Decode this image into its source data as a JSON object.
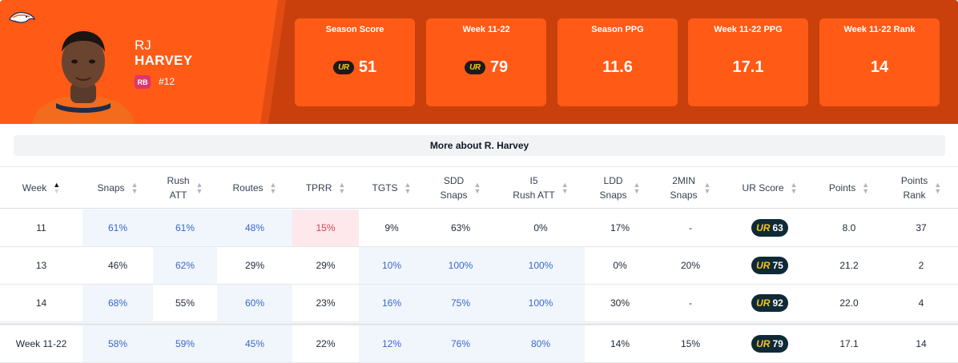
{
  "player": {
    "first_name": "RJ",
    "last_name": "HARVEY",
    "position": "RB",
    "number": "#12"
  },
  "colors": {
    "brand": "#ff5a16",
    "brand_dark": "#c9400d",
    "ur_badge": "#0f2a36",
    "highlight_blue": "#f0f6fc",
    "highlight_red": "#fde8eb"
  },
  "stat_cards": [
    {
      "label": "Season Score",
      "value": "51",
      "icon": "ur-logo-icon"
    },
    {
      "label": "Week 11-22",
      "value": "79",
      "icon": "ur-logo-icon"
    },
    {
      "label": "Season PPG",
      "value": "11.6"
    },
    {
      "label": "Week 11-22 PPG",
      "value": "17.1"
    },
    {
      "label": "Week 11-22 Rank",
      "value": "14"
    }
  ],
  "more_about": "More about R. Harvey",
  "ur_mark": "UR",
  "columns": [
    {
      "l1": "Week",
      "l2": ""
    },
    {
      "l1": "Snaps",
      "l2": ""
    },
    {
      "l1": "Rush",
      "l2": "ATT"
    },
    {
      "l1": "Routes",
      "l2": ""
    },
    {
      "l1": "TPRR",
      "l2": ""
    },
    {
      "l1": "TGTS",
      "l2": ""
    },
    {
      "l1": "SDD",
      "l2": "Snaps"
    },
    {
      "l1": "I5",
      "l2": "Rush ATT"
    },
    {
      "l1": "LDD",
      "l2": "Snaps"
    },
    {
      "l1": "2MIN",
      "l2": "Snaps"
    },
    {
      "l1": "UR Score",
      "l2": ""
    },
    {
      "l1": "Points",
      "l2": ""
    },
    {
      "l1": "Points",
      "l2": "Rank"
    }
  ],
  "rows": [
    {
      "week": "11",
      "snaps": "61%",
      "rush_att": "61%",
      "routes": "48%",
      "tprr": "15%",
      "tgts": "9%",
      "sdd_snaps": "63%",
      "i5_rush_att": "0%",
      "ldd_snaps": "17%",
      "twomin_snaps": "-",
      "ur_score": "63",
      "points": "8.0",
      "points_rank": "37"
    },
    {
      "week": "13",
      "snaps": "46%",
      "rush_att": "62%",
      "routes": "29%",
      "tprr": "29%",
      "tgts": "10%",
      "sdd_snaps": "100%",
      "i5_rush_att": "100%",
      "ldd_snaps": "0%",
      "twomin_snaps": "20%",
      "ur_score": "75",
      "points": "21.2",
      "points_rank": "2"
    },
    {
      "week": "14",
      "snaps": "68%",
      "rush_att": "55%",
      "routes": "60%",
      "tprr": "23%",
      "tgts": "16%",
      "sdd_snaps": "75%",
      "i5_rush_att": "100%",
      "ldd_snaps": "30%",
      "twomin_snaps": "-",
      "ur_score": "92",
      "points": "22.0",
      "points_rank": "4"
    }
  ],
  "total": {
    "week": "Week 11-22",
    "snaps": "58%",
    "rush_att": "59%",
    "routes": "45%",
    "tprr": "22%",
    "tgts": "12%",
    "sdd_snaps": "76%",
    "i5_rush_att": "80%",
    "ldd_snaps": "14%",
    "twomin_snaps": "15%",
    "ur_score": "79",
    "points": "17.1",
    "points_rank": "14"
  }
}
